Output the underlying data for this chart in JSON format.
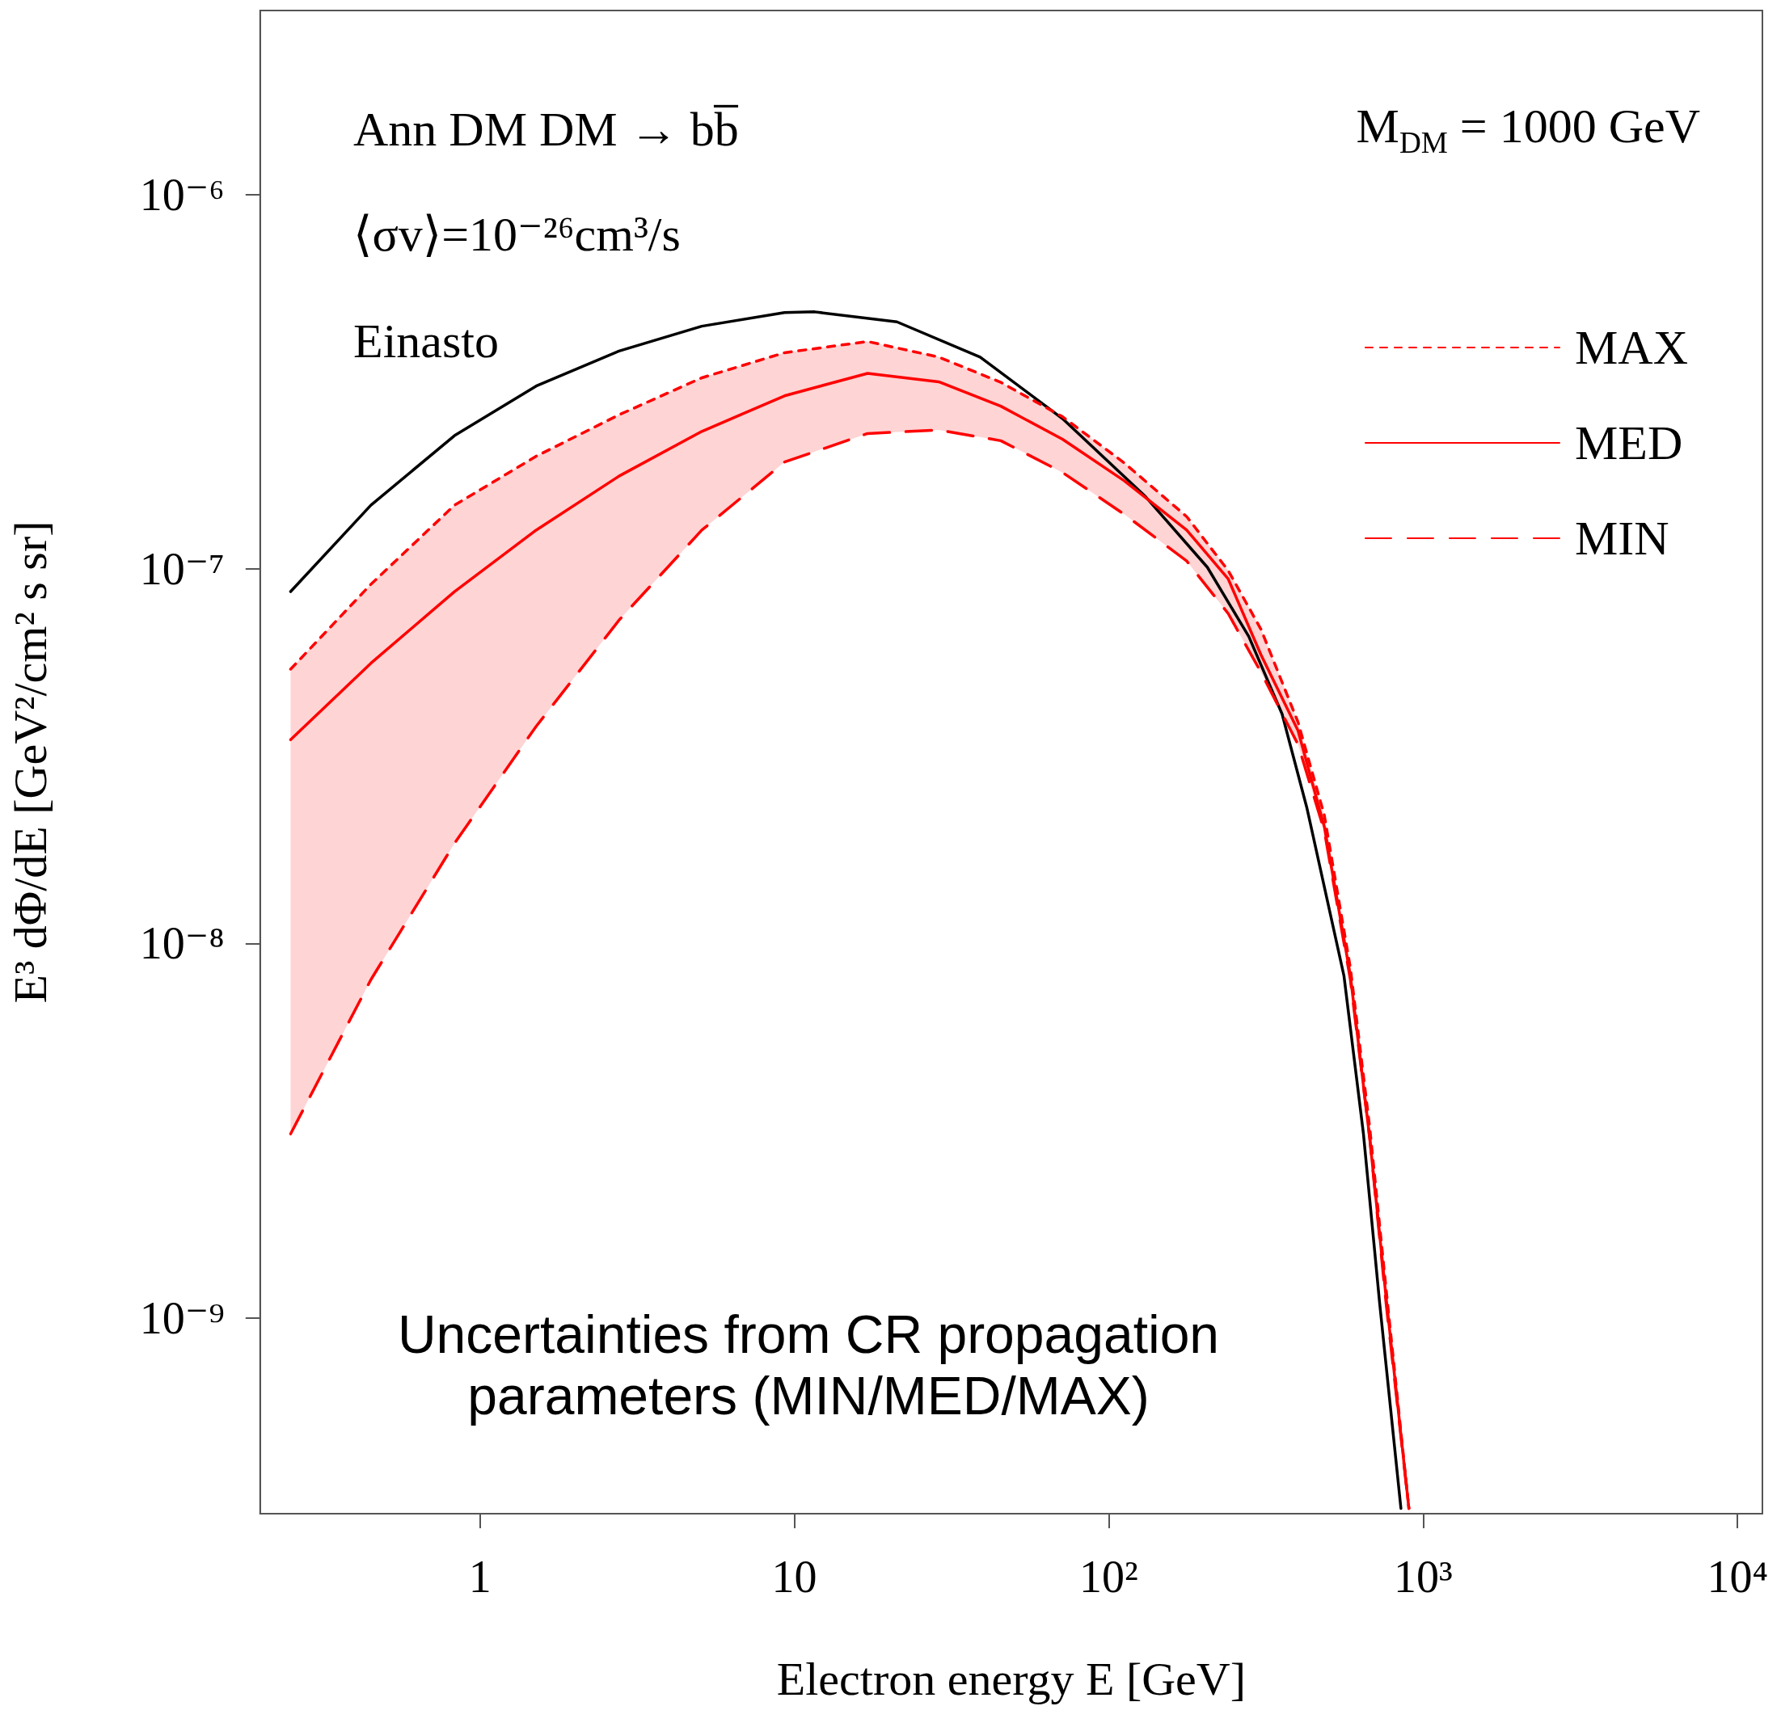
{
  "chart_data": {
    "type": "line",
    "xlabel": "Electron energy E [GeV]",
    "ylabel": "E³ dΦ/dE [GeV²/cm² s sr]",
    "log": "xy",
    "xlim": [
      0.2,
      12000
    ],
    "ylim": [
      3e-10,
      3.1e-06
    ],
    "legend": "top right",
    "marker": "none",
    "xticks": [
      1,
      10,
      {
        "value": 100,
        "label": "10²"
      },
      {
        "value": 1000,
        "label": "10³"
      },
      {
        "value": 10000,
        "label": "10⁴"
      }
    ],
    "yticks": [
      {
        "value": 1e-09,
        "label": "10⁻⁹"
      },
      {
        "value": 1e-08,
        "label": "10⁻⁸"
      },
      {
        "value": 1e-07,
        "label": "10⁻⁷"
      },
      {
        "value": 1e-06,
        "label": "10⁻⁶"
      }
    ],
    "series": [
      {
        "color": "#000000",
        "line_style": "solid",
        "x": [
          0.25,
          0.45,
          0.83,
          1.51,
          2.77,
          5.08,
          9.31,
          11.6,
          21.2,
          39,
          71.3,
          131,
          206,
          279,
          356,
          427,
          560,
          646,
          727,
          850
        ],
        "values": [
          8.7e-08,
          1.48e-07,
          2.27e-07,
          3.08e-07,
          3.82e-07,
          4.45e-07,
          4.84e-07,
          4.86e-07,
          4.57e-07,
          3.68e-07,
          2.52e-07,
          1.56e-07,
          1.01e-07,
          6.6e-08,
          4.1e-08,
          2.3e-08,
          8.2e-09,
          3.1e-09,
          1.1e-09,
          3.1e-10
        ]
      },
      {
        "name": "MAX",
        "color": "#ff0000",
        "line_style": "dotted",
        "x": [
          0.25,
          0.45,
          0.83,
          1.51,
          2.77,
          5.08,
          9.31,
          17.1,
          28.8,
          45.4,
          71.3,
          112,
          177,
          240,
          305,
          400,
          485,
          587,
          677,
          762,
          901
        ],
        "values": [
          5.4e-08,
          9.1e-08,
          1.48e-07,
          2e-07,
          2.58e-07,
          3.24e-07,
          3.78e-07,
          4.05e-07,
          3.68e-07,
          3.15e-07,
          2.55e-07,
          1.92e-07,
          1.38e-07,
          9.9e-08,
          6.9e-08,
          3.9e-08,
          2.2e-08,
          8.6e-09,
          3.2e-09,
          1.2e-09,
          3.1e-10
        ]
      },
      {
        "name": "MED",
        "color": "#ff0000",
        "line_style": "solid",
        "x": [
          0.25,
          0.45,
          0.83,
          1.51,
          2.77,
          5.08,
          9.31,
          17.1,
          28.8,
          45.4,
          71.3,
          112,
          177,
          240,
          305,
          400,
          485,
          587,
          677,
          762,
          901
        ],
        "values": [
          3.5e-08,
          5.6e-08,
          8.7e-08,
          1.27e-07,
          1.77e-07,
          2.33e-07,
          2.9e-07,
          3.33e-07,
          3.16e-07,
          2.72e-07,
          2.22e-07,
          1.72e-07,
          1.27e-07,
          9.4e-08,
          5.9e-08,
          3.7e-08,
          2.05e-08,
          8.2e-09,
          3e-09,
          1.14e-09,
          3.1e-10
        ],
        "lower": [
          3.1e-09,
          8e-09,
          1.85e-08,
          3.8e-08,
          7.3e-08,
          1.27e-07,
          1.93e-07,
          2.3e-07,
          2.35e-07,
          2.2e-07,
          1.81e-07,
          1.4e-07,
          1.05e-07,
          7.6e-08,
          5.3e-08,
          3.4e-08,
          2e-08,
          8e-09,
          3e-09,
          1.1e-09,
          3.1e-10
        ],
        "upper": [
          5.4e-08,
          9.1e-08,
          1.48e-07,
          2e-07,
          2.58e-07,
          3.24e-07,
          3.78e-07,
          4.05e-07,
          3.68e-07,
          3.15e-07,
          2.55e-07,
          1.92e-07,
          1.38e-07,
          9.9e-08,
          6.9e-08,
          3.9e-08,
          2.2e-08,
          8.6e-09,
          3.2e-09,
          1.2e-09,
          3.1e-10
        ]
      },
      {
        "name": "MIN",
        "color": "#ff0000",
        "line_style": "dashed",
        "x": [
          0.25,
          0.45,
          0.83,
          1.51,
          2.77,
          5.08,
          9.31,
          17.1,
          28.8,
          45.4,
          71.3,
          112,
          177,
          240,
          305,
          400,
          485,
          587,
          677,
          762,
          901
        ],
        "values": [
          3.1e-09,
          8e-09,
          1.85e-08,
          3.8e-08,
          7.3e-08,
          1.27e-07,
          1.93e-07,
          2.3e-07,
          2.35e-07,
          2.2e-07,
          1.81e-07,
          1.4e-07,
          1.05e-07,
          7.6e-08,
          5.3e-08,
          3.4e-08,
          2e-08,
          8e-09,
          3e-09,
          1.1e-09,
          3.1e-10
        ]
      }
    ],
    "annotations": [
      "Ann DM DM → bb̅",
      "⟨σv⟩=10⁻²⁶cm³/s",
      "Einasto",
      "M$_{DM}$ = 1000 GeV",
      "Uncertainties from CR propagation parameters (MIN/MED/MAX)"
    ]
  }
}
